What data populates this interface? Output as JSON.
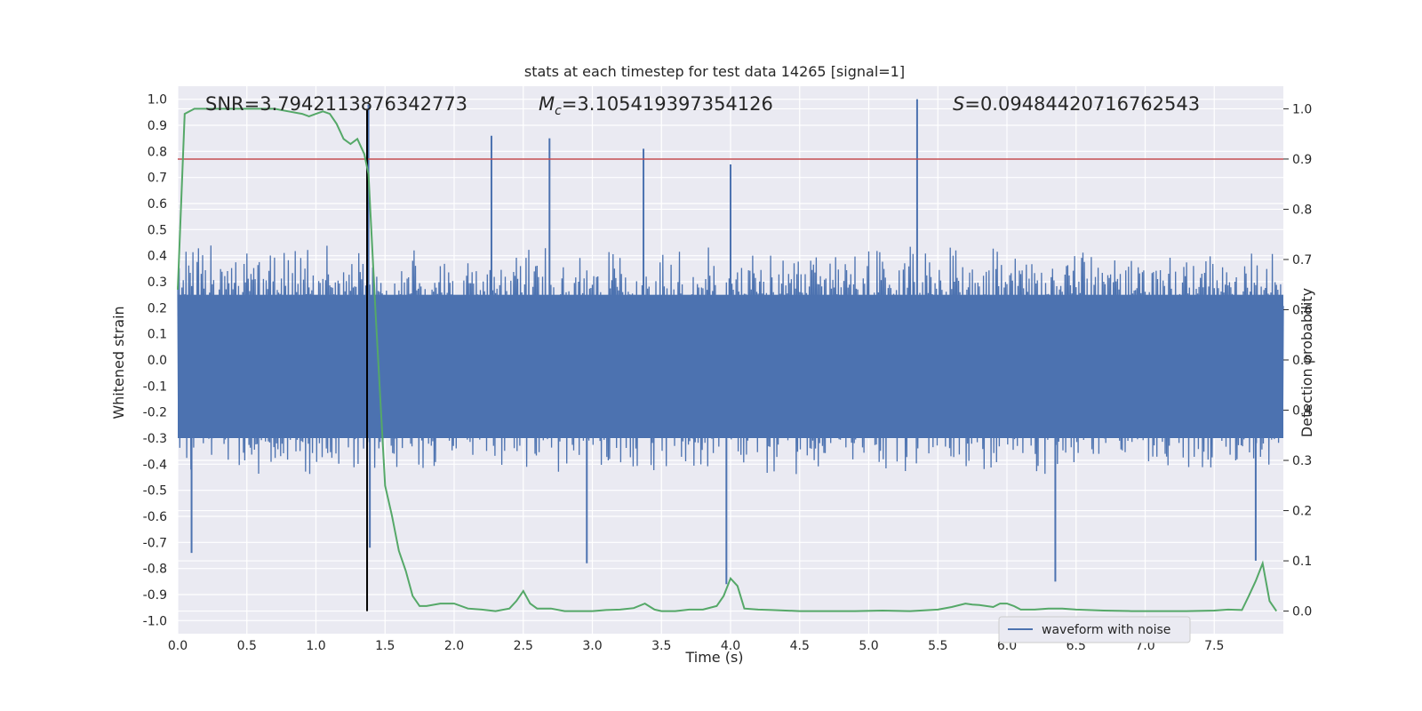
{
  "chart_data": {
    "type": "line",
    "title": "stats at each timestep for test data 14265 [signal=1]",
    "xlabel": "Time (s)",
    "ylabel_left": "Whitened strain",
    "ylabel_right": "Detection probability",
    "xlim": [
      0,
      8
    ],
    "ylim_left": [
      -1.05,
      1.05
    ],
    "ylim_right": [
      -0.045,
      1.045
    ],
    "x_ticks": [
      "0.0",
      "0.5",
      "1.0",
      "1.5",
      "2.0",
      "2.5",
      "3.0",
      "3.5",
      "4.0",
      "4.5",
      "5.0",
      "5.5",
      "6.0",
      "6.5",
      "7.0",
      "7.5"
    ],
    "y_left_ticks": [
      "-1.0",
      "-0.9",
      "-0.8",
      "-0.7",
      "-0.6",
      "-0.5",
      "-0.4",
      "-0.3",
      "-0.2",
      "-0.1",
      "0.0",
      "0.1",
      "0.2",
      "0.3",
      "0.4",
      "0.5",
      "0.6",
      "0.7",
      "0.8",
      "0.9",
      "1.0"
    ],
    "y_right_ticks": [
      "0.0",
      "0.1",
      "0.2",
      "0.3",
      "0.4",
      "0.5",
      "0.6",
      "0.7",
      "0.8",
      "0.9",
      "1.0"
    ],
    "grid": true,
    "legend": {
      "position": "lower-right",
      "entries": [
        "waveform with noise"
      ]
    },
    "annotations": {
      "snr_prefix": "SNR=",
      "snr_value": "3.7942113876342773",
      "mc_symbol": "M",
      "mc_subscript": "c",
      "mc_value": "=3.105419397354126",
      "s_symbol": "S",
      "s_value": "=0.09484420716762543"
    },
    "threshold_line": {
      "axis": "right",
      "value": 0.9,
      "color": "#c44e52"
    },
    "vertical_marker": {
      "x": 1.37,
      "color": "#000000"
    },
    "waveform_envelope": {
      "name": "waveform with noise",
      "color": "#4c72b0",
      "typical_peak": 0.45,
      "spikes": [
        {
          "x": 1.38,
          "y": 0.98
        },
        {
          "x": 1.39,
          "y": -0.72
        },
        {
          "x": 2.27,
          "y": 0.86
        },
        {
          "x": 2.69,
          "y": 0.85
        },
        {
          "x": 3.37,
          "y": 0.81
        },
        {
          "x": 3.97,
          "y": -0.86
        },
        {
          "x": 4.0,
          "y": 0.75
        },
        {
          "x": 5.35,
          "y": 1.0
        },
        {
          "x": 6.35,
          "y": -0.85
        },
        {
          "x": 7.8,
          "y": -0.77
        },
        {
          "x": 2.96,
          "y": -0.78
        },
        {
          "x": 0.1,
          "y": -0.74
        }
      ]
    },
    "probability_series": {
      "color": "#55a868",
      "x": [
        0.0,
        0.05,
        0.12,
        0.2,
        0.3,
        0.4,
        0.5,
        0.6,
        0.7,
        0.8,
        0.9,
        0.95,
        1.0,
        1.05,
        1.1,
        1.15,
        1.2,
        1.25,
        1.3,
        1.35,
        1.38,
        1.43,
        1.5,
        1.55,
        1.6,
        1.65,
        1.7,
        1.75,
        1.8,
        1.9,
        2.0,
        2.1,
        2.2,
        2.3,
        2.4,
        2.45,
        2.5,
        2.55,
        2.6,
        2.7,
        2.8,
        2.9,
        3.0,
        3.1,
        3.2,
        3.3,
        3.38,
        3.45,
        3.5,
        3.6,
        3.7,
        3.8,
        3.9,
        3.95,
        4.0,
        4.05,
        4.1,
        4.2,
        4.3,
        4.5,
        4.7,
        4.9,
        5.1,
        5.3,
        5.5,
        5.6,
        5.7,
        5.75,
        5.8,
        5.9,
        5.95,
        6.0,
        6.05,
        6.1,
        6.2,
        6.3,
        6.4,
        6.5,
        6.7,
        6.9,
        7.1,
        7.3,
        7.5,
        7.6,
        7.7,
        7.75,
        7.8,
        7.85,
        7.9,
        7.95
      ],
      "y": [
        0.64,
        0.99,
        1.0,
        1.0,
        1.0,
        1.0,
        1.0,
        1.0,
        1.0,
        0.995,
        0.99,
        0.985,
        0.99,
        0.995,
        0.99,
        0.97,
        0.94,
        0.93,
        0.94,
        0.91,
        0.87,
        0.6,
        0.25,
        0.19,
        0.12,
        0.08,
        0.03,
        0.01,
        0.01,
        0.015,
        0.015,
        0.005,
        0.003,
        0.0,
        0.005,
        0.02,
        0.04,
        0.015,
        0.005,
        0.005,
        0.0,
        0.0,
        0.0,
        0.002,
        0.003,
        0.006,
        0.015,
        0.003,
        0.0,
        0.0,
        0.003,
        0.003,
        0.01,
        0.03,
        0.065,
        0.05,
        0.005,
        0.003,
        0.002,
        0.0,
        0.0,
        0.0,
        0.001,
        0.0,
        0.003,
        0.008,
        0.015,
        0.013,
        0.012,
        0.008,
        0.015,
        0.015,
        0.01,
        0.003,
        0.003,
        0.005,
        0.005,
        0.003,
        0.001,
        0.0,
        0.0,
        0.0,
        0.001,
        0.003,
        0.002,
        0.03,
        0.06,
        0.095,
        0.02,
        0.0
      ]
    }
  }
}
